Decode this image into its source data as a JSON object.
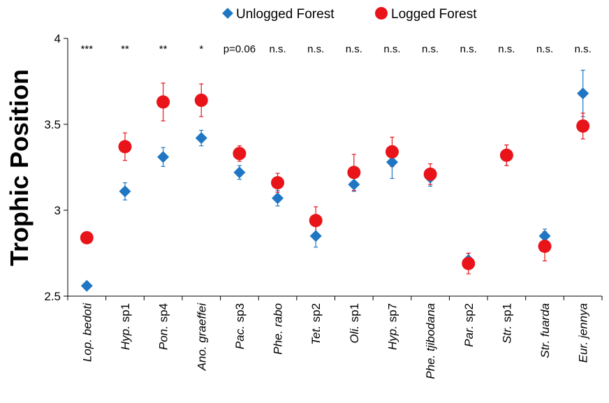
{
  "chart_data": {
    "type": "scatter",
    "title": "",
    "xlabel": "",
    "ylabel": "Trophic Position",
    "ylim": [
      2.5,
      4
    ],
    "yticks": [
      "2.5",
      "3",
      "3.5",
      "4"
    ],
    "legend": {
      "position": "top-center"
    },
    "grid": false,
    "categories": [
      {
        "genus": "Lop.",
        "species": "bedoti",
        "genus_italic": true,
        "species_italic": true
      },
      {
        "genus": "Hyp.",
        "species": "sp1",
        "genus_italic": true,
        "species_italic": false
      },
      {
        "genus": "Pon.",
        "species": "sp4",
        "genus_italic": true,
        "species_italic": false
      },
      {
        "genus": "Ano.",
        "species": "graeffei",
        "genus_italic": true,
        "species_italic": true
      },
      {
        "genus": "Pac.",
        "species": "sp3",
        "genus_italic": true,
        "species_italic": false
      },
      {
        "genus": "Phe.",
        "species": "rabo",
        "genus_italic": true,
        "species_italic": true
      },
      {
        "genus": "Tet.",
        "species": "sp2",
        "genus_italic": true,
        "species_italic": false
      },
      {
        "genus": "Oli.",
        "species": "sp1",
        "genus_italic": true,
        "species_italic": false
      },
      {
        "genus": "Hyp.",
        "species": "sp7",
        "genus_italic": true,
        "species_italic": false
      },
      {
        "genus": "Phe.",
        "species": "tjibodana",
        "genus_italic": true,
        "species_italic": true
      },
      {
        "genus": "Par.",
        "species": "sp2",
        "genus_italic": true,
        "species_italic": false
      },
      {
        "genus": "Str.",
        "species": "sp1",
        "genus_italic": true,
        "species_italic": false
      },
      {
        "genus": "Str.",
        "species": "fuarda",
        "genus_italic": true,
        "species_italic": true
      },
      {
        "genus": "Eur.",
        "species": "jennya",
        "genus_italic": true,
        "species_italic": true
      }
    ],
    "significance": [
      "***",
      "**",
      "**",
      "*",
      "p=0.06",
      "n.s.",
      "n.s.",
      "n.s.",
      "n.s.",
      "n.s.",
      "n.s.",
      "n.s.",
      "n.s.",
      "n.s."
    ],
    "series": [
      {
        "name": "Unlogged Forest",
        "marker": "diamond",
        "color": "#1f77c4",
        "values": [
          2.56,
          3.11,
          3.31,
          3.42,
          3.22,
          3.07,
          2.85,
          3.15,
          3.28,
          3.19,
          2.71,
          3.32,
          2.85,
          3.68
        ],
        "errors": [
          0.0,
          0.05,
          0.055,
          0.045,
          0.04,
          0.045,
          0.065,
          0.04,
          0.095,
          0.05,
          0.04,
          0.06,
          0.04,
          0.135
        ]
      },
      {
        "name": "Logged Forest",
        "marker": "circle",
        "color": "#e8141a",
        "values": [
          2.84,
          3.37,
          3.63,
          3.64,
          3.33,
          3.16,
          2.94,
          3.22,
          3.34,
          3.21,
          2.69,
          3.32,
          2.79,
          3.49
        ],
        "errors": [
          0.0,
          0.08,
          0.11,
          0.095,
          0.045,
          0.055,
          0.08,
          0.105,
          0.085,
          0.06,
          0.06,
          0.06,
          0.085,
          0.075
        ]
      }
    ]
  }
}
